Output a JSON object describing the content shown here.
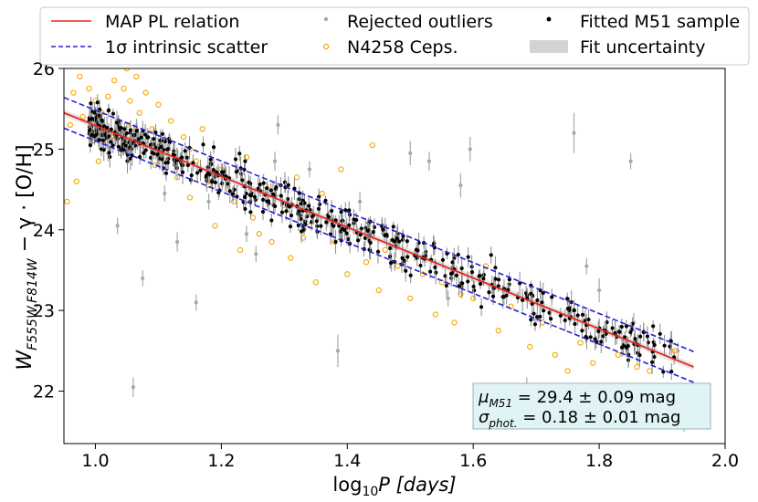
{
  "chart_data": {
    "type": "scatter",
    "title": "",
    "xlabel": "log",
    "xlabel_sub": "10",
    "xlabel_tail": "P [days]",
    "ylabel_main": "W",
    "ylabel_sub": "F555W,F814W",
    "ylabel_tail": " − γ · [O/H]",
    "xlim": [
      0.95,
      2.0
    ],
    "ylim": [
      26.0,
      21.35
    ],
    "xticks": [
      "1.0",
      "1.2",
      "1.4",
      "1.6",
      "1.8",
      "2.0"
    ],
    "xtick_values": [
      1.0,
      1.2,
      1.4,
      1.6,
      1.8,
      2.0
    ],
    "yticks": [
      "22",
      "23",
      "24",
      "25",
      "26"
    ],
    "ytick_values": [
      22,
      23,
      24,
      25,
      26
    ],
    "legend": {
      "position": "top (outside, above axes)",
      "entries": [
        {
          "label": "MAP PL relation",
          "kind": "line",
          "color": "#e8251e"
        },
        {
          "label": "Rejected outliers",
          "kind": "dot",
          "color": "#a8a8a8"
        },
        {
          "label": "Fitted M51 sample",
          "kind": "dot",
          "color": "#000000"
        },
        {
          "label": "1σ intrinsic scatter",
          "kind": "dashed",
          "color": "#1f1fd6"
        },
        {
          "label": "N4258 Ceps.",
          "kind": "ring",
          "color": "#f5a400"
        },
        {
          "label": "Fit uncertainty",
          "kind": "patch",
          "color": "#d3d3d3"
        }
      ]
    },
    "relation": {
      "name": "MAP PL relation",
      "x": [
        0.95,
        1.95
      ],
      "y": [
        25.45,
        22.3
      ],
      "scatter": 0.19
    },
    "annotation": {
      "line1_sym": "μ",
      "line1_sub": "M51",
      "line1_text": " = 29.4 ± 0.09 mag",
      "line2_sym": "σ",
      "line2_sub": "phot.",
      "line2_text": " = 0.18 ± 0.01 mag",
      "box_color": "#e0f4f6"
    },
    "series": [
      {
        "name": "Rejected outliers",
        "color": "#a8a8a8",
        "points": [
          {
            "x": 1.06,
            "y": 22.05,
            "err": 0.12
          },
          {
            "x": 1.035,
            "y": 24.05,
            "err": 0.1
          },
          {
            "x": 1.075,
            "y": 23.4,
            "err": 0.1
          },
          {
            "x": 1.1,
            "y": 24.9,
            "err": 0.12
          },
          {
            "x": 1.16,
            "y": 23.1,
            "err": 0.1
          },
          {
            "x": 1.13,
            "y": 23.85,
            "err": 0.12
          },
          {
            "x": 1.18,
            "y": 24.35,
            "err": 0.1
          },
          {
            "x": 1.2,
            "y": 24.7,
            "err": 0.12
          },
          {
            "x": 1.255,
            "y": 23.7,
            "err": 0.1
          },
          {
            "x": 1.285,
            "y": 24.85,
            "err": 0.12
          },
          {
            "x": 1.29,
            "y": 25.3,
            "err": 0.12
          },
          {
            "x": 1.34,
            "y": 24.75,
            "err": 0.1
          },
          {
            "x": 1.385,
            "y": 22.5,
            "err": 0.2
          },
          {
            "x": 1.42,
            "y": 24.35,
            "err": 0.12
          },
          {
            "x": 1.46,
            "y": 24.05,
            "err": 0.1
          },
          {
            "x": 1.5,
            "y": 24.95,
            "err": 0.15
          },
          {
            "x": 1.53,
            "y": 24.85,
            "err": 0.12
          },
          {
            "x": 1.58,
            "y": 24.55,
            "err": 0.15
          },
          {
            "x": 1.595,
            "y": 25.0,
            "err": 0.15
          },
          {
            "x": 1.685,
            "y": 22.05,
            "err": 0.12
          },
          {
            "x": 1.715,
            "y": 21.82,
            "err": 0.1
          },
          {
            "x": 1.76,
            "y": 25.2,
            "err": 0.25
          },
          {
            "x": 1.78,
            "y": 23.55,
            "err": 0.1
          },
          {
            "x": 1.8,
            "y": 23.25,
            "err": 0.15
          },
          {
            "x": 1.85,
            "y": 24.85,
            "err": 0.1
          },
          {
            "x": 1.855,
            "y": 22.85,
            "err": 0.12
          },
          {
            "x": 1.915,
            "y": 22.6,
            "err": 0.15
          },
          {
            "x": 1.925,
            "y": 22.5,
            "err": 0.1
          },
          {
            "x": 1.935,
            "y": 21.6,
            "err": 0.1
          },
          {
            "x": 1.11,
            "y": 24.45,
            "err": 0.1
          },
          {
            "x": 1.24,
            "y": 23.95,
            "err": 0.1
          },
          {
            "x": 1.02,
            "y": 24.95,
            "err": 0.1
          },
          {
            "x": 1.47,
            "y": 23.6,
            "err": 0.12
          },
          {
            "x": 1.56,
            "y": 23.15,
            "err": 0.1
          }
        ]
      },
      {
        "name": "N4258 Ceps.",
        "color": "#f5a400",
        "points": [
          {
            "x": 0.955,
            "y": 24.35
          },
          {
            "x": 0.96,
            "y": 25.3
          },
          {
            "x": 0.965,
            "y": 25.7
          },
          {
            "x": 0.97,
            "y": 24.6
          },
          {
            "x": 0.975,
            "y": 25.9
          },
          {
            "x": 0.98,
            "y": 25.4
          },
          {
            "x": 0.99,
            "y": 25.75
          },
          {
            "x": 0.995,
            "y": 25.1
          },
          {
            "x": 1.0,
            "y": 25.6
          },
          {
            "x": 1.005,
            "y": 24.85
          },
          {
            "x": 1.01,
            "y": 25.45
          },
          {
            "x": 1.02,
            "y": 25.65
          },
          {
            "x": 1.025,
            "y": 25.15
          },
          {
            "x": 1.03,
            "y": 25.85
          },
          {
            "x": 1.035,
            "y": 25.35
          },
          {
            "x": 1.04,
            "y": 24.95
          },
          {
            "x": 1.045,
            "y": 25.75
          },
          {
            "x": 1.05,
            "y": 26.0
          },
          {
            "x": 1.055,
            "y": 25.6
          },
          {
            "x": 1.06,
            "y": 25.2
          },
          {
            "x": 1.065,
            "y": 25.9
          },
          {
            "x": 1.07,
            "y": 25.45
          },
          {
            "x": 1.075,
            "y": 25.05
          },
          {
            "x": 1.08,
            "y": 25.7
          },
          {
            "x": 1.09,
            "y": 25.25
          },
          {
            "x": 1.095,
            "y": 24.8
          },
          {
            "x": 1.1,
            "y": 25.55
          },
          {
            "x": 1.11,
            "y": 24.95
          },
          {
            "x": 1.12,
            "y": 25.35
          },
          {
            "x": 1.13,
            "y": 24.65
          },
          {
            "x": 1.14,
            "y": 25.15
          },
          {
            "x": 1.15,
            "y": 24.4
          },
          {
            "x": 1.16,
            "y": 24.85
          },
          {
            "x": 1.17,
            "y": 25.25
          },
          {
            "x": 1.18,
            "y": 24.55
          },
          {
            "x": 1.19,
            "y": 24.05
          },
          {
            "x": 1.2,
            "y": 24.75
          },
          {
            "x": 1.22,
            "y": 24.35
          },
          {
            "x": 1.23,
            "y": 23.75
          },
          {
            "x": 1.24,
            "y": 24.9
          },
          {
            "x": 1.25,
            "y": 24.15
          },
          {
            "x": 1.26,
            "y": 23.95
          },
          {
            "x": 1.27,
            "y": 24.55
          },
          {
            "x": 1.28,
            "y": 23.85
          },
          {
            "x": 1.3,
            "y": 24.25
          },
          {
            "x": 1.31,
            "y": 23.65
          },
          {
            "x": 1.32,
            "y": 24.65
          },
          {
            "x": 1.34,
            "y": 24.05
          },
          {
            "x": 1.35,
            "y": 23.35
          },
          {
            "x": 1.36,
            "y": 24.45
          },
          {
            "x": 1.38,
            "y": 23.85
          },
          {
            "x": 1.39,
            "y": 24.75
          },
          {
            "x": 1.4,
            "y": 23.45
          },
          {
            "x": 1.42,
            "y": 23.95
          },
          {
            "x": 1.44,
            "y": 25.05
          },
          {
            "x": 1.45,
            "y": 23.25
          },
          {
            "x": 1.46,
            "y": 23.75
          },
          {
            "x": 1.48,
            "y": 23.55
          },
          {
            "x": 1.5,
            "y": 23.15
          },
          {
            "x": 1.52,
            "y": 23.45
          },
          {
            "x": 1.54,
            "y": 22.95
          },
          {
            "x": 1.55,
            "y": 23.35
          },
          {
            "x": 1.57,
            "y": 22.85
          },
          {
            "x": 1.6,
            "y": 23.15
          },
          {
            "x": 1.62,
            "y": 23.55
          },
          {
            "x": 1.64,
            "y": 22.75
          },
          {
            "x": 1.66,
            "y": 23.05
          },
          {
            "x": 1.69,
            "y": 22.55
          },
          {
            "x": 1.71,
            "y": 22.85
          },
          {
            "x": 1.73,
            "y": 22.45
          },
          {
            "x": 1.75,
            "y": 22.25
          },
          {
            "x": 1.77,
            "y": 22.6
          },
          {
            "x": 1.79,
            "y": 22.35
          },
          {
            "x": 1.83,
            "y": 22.45
          },
          {
            "x": 1.86,
            "y": 22.3
          },
          {
            "x": 1.88,
            "y": 22.25
          },
          {
            "x": 1.92,
            "y": 22.5
          },
          {
            "x": 1.01,
            "y": 25.2
          },
          {
            "x": 1.05,
            "y": 25.3
          },
          {
            "x": 1.15,
            "y": 25.0
          },
          {
            "x": 1.21,
            "y": 24.5
          },
          {
            "x": 1.33,
            "y": 23.9
          },
          {
            "x": 1.43,
            "y": 23.6
          },
          {
            "x": 1.58,
            "y": 23.2
          }
        ]
      }
    ],
    "fitted_sample": {
      "name": "Fitted M51 sample",
      "color": "#000000",
      "x_range": [
        0.99,
        1.92
      ],
      "n_points": 560,
      "scatter_mag": 0.22,
      "err_mag": 0.1
    }
  }
}
